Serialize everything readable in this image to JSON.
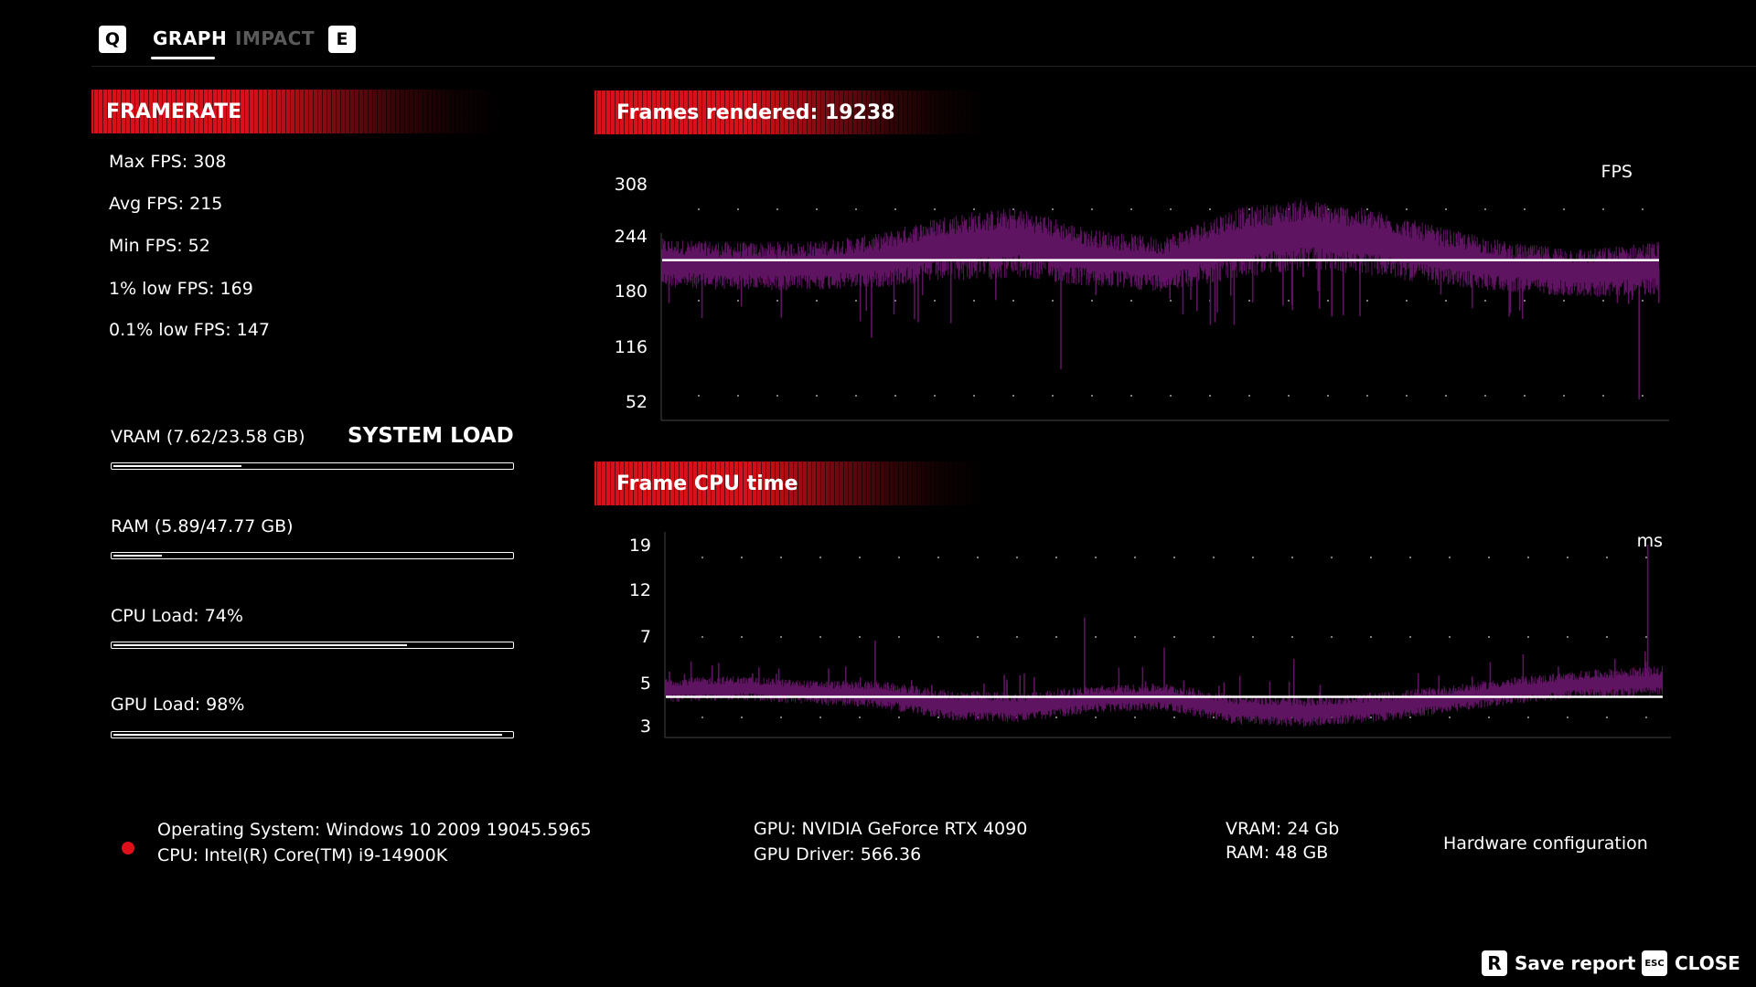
{
  "tabs": {
    "left_key": "Q",
    "right_key": "E",
    "items": [
      {
        "label": "GRAPH",
        "active": true
      },
      {
        "label": "IMPACT",
        "active": false
      }
    ]
  },
  "framerate": {
    "header": "FRAMERATE",
    "stats": [
      "Max FPS: 308",
      "Avg FPS: 215",
      "Min FPS: 52",
      "1% low FPS: 169",
      "0.1% low FPS: 147"
    ]
  },
  "system_load": {
    "title": "SYSTEM LOAD",
    "items": [
      {
        "label": "VRAM (7.62/23.58 GB)",
        "fraction": 0.323
      },
      {
        "label": "RAM (5.89/47.77 GB)",
        "fraction": 0.123
      },
      {
        "label": "CPU Load: 74%",
        "fraction": 0.74
      },
      {
        "label": "GPU Load: 98%",
        "fraction": 0.98
      }
    ]
  },
  "fps_chart": {
    "header": "Frames rendered: 19238",
    "unit": "FPS",
    "ticks": [
      "308",
      "244",
      "180",
      "116",
      "52"
    ],
    "average_line": 215,
    "colors": {
      "trace": "#5e1460",
      "average": "#ffffff"
    }
  },
  "cpu_chart": {
    "header": "Frame CPU time",
    "unit": "ms",
    "ticks": [
      "19",
      "12",
      "7",
      "5",
      "3"
    ],
    "average_line": 4.3,
    "colors": {
      "trace": "#5e1460",
      "average": "#ffffff"
    }
  },
  "chart_data": [
    {
      "type": "area",
      "title": "Frames rendered: 19238",
      "ylabel": "FPS",
      "y_ticks": [
        52,
        116,
        180,
        244,
        308
      ],
      "ylim": [
        52,
        308
      ],
      "grid": "dotted",
      "series": [
        {
          "name": "FPS",
          "band_center": [
            212,
            208,
            208,
            214,
            230,
            236,
            218,
            210,
            234,
            246,
            236,
            218,
            206,
            200,
            206
          ],
          "band_halfwidth": [
            20,
            20,
            20,
            22,
            28,
            30,
            24,
            22,
            30,
            30,
            28,
            24,
            20,
            20,
            22
          ],
          "dips": [
            [
              0.04,
              148
            ],
            [
              0.21,
              125
            ],
            [
              0.4,
              88
            ],
            [
              0.55,
              140
            ],
            [
              0.7,
              150
            ],
            [
              0.98,
              52
            ]
          ]
        }
      ],
      "average": 215
    },
    {
      "type": "area",
      "title": "Frame CPU time",
      "ylabel": "ms",
      "y_ticks": [
        3,
        5,
        7,
        12,
        19
      ],
      "ylim": [
        2.6,
        19
      ],
      "grid": "dotted",
      "series": [
        {
          "name": "ms",
          "band_center": [
            4.6,
            4.7,
            4.5,
            4.4,
            3.9,
            3.8,
            4.2,
            4.3,
            3.7,
            3.6,
            3.8,
            4.2,
            4.6,
            4.9,
            5.0
          ],
          "band_halfwidth": [
            0.4,
            0.4,
            0.4,
            0.45,
            0.5,
            0.5,
            0.45,
            0.45,
            0.5,
            0.5,
            0.5,
            0.45,
            0.45,
            0.45,
            0.5
          ],
          "spikes": [
            [
              0.21,
              6.8
            ],
            [
              0.42,
              9.0
            ],
            [
              0.5,
              6.5
            ],
            [
              0.63,
              6.0
            ],
            [
              0.86,
              6.2
            ],
            [
              0.985,
              19
            ]
          ]
        }
      ],
      "average": 4.3
    }
  ],
  "hardware": {
    "os": "Operating System: Windows 10 2009 19045.5965",
    "cpu": "CPU: Intel(R) Core(TM) i9-14900K",
    "gpu": "GPU: NVIDIA GeForce RTX 4090",
    "gpu_driver": "GPU Driver: 566.36",
    "vram": "VRAM: 24 Gb",
    "ram": "RAM: 48 GB",
    "section_label": "Hardware configuration",
    "status_color": "#e0101a"
  },
  "footer": {
    "save_key": "R",
    "save_label": "Save report",
    "close_key": "ESC",
    "close_label": "CLOSE"
  }
}
